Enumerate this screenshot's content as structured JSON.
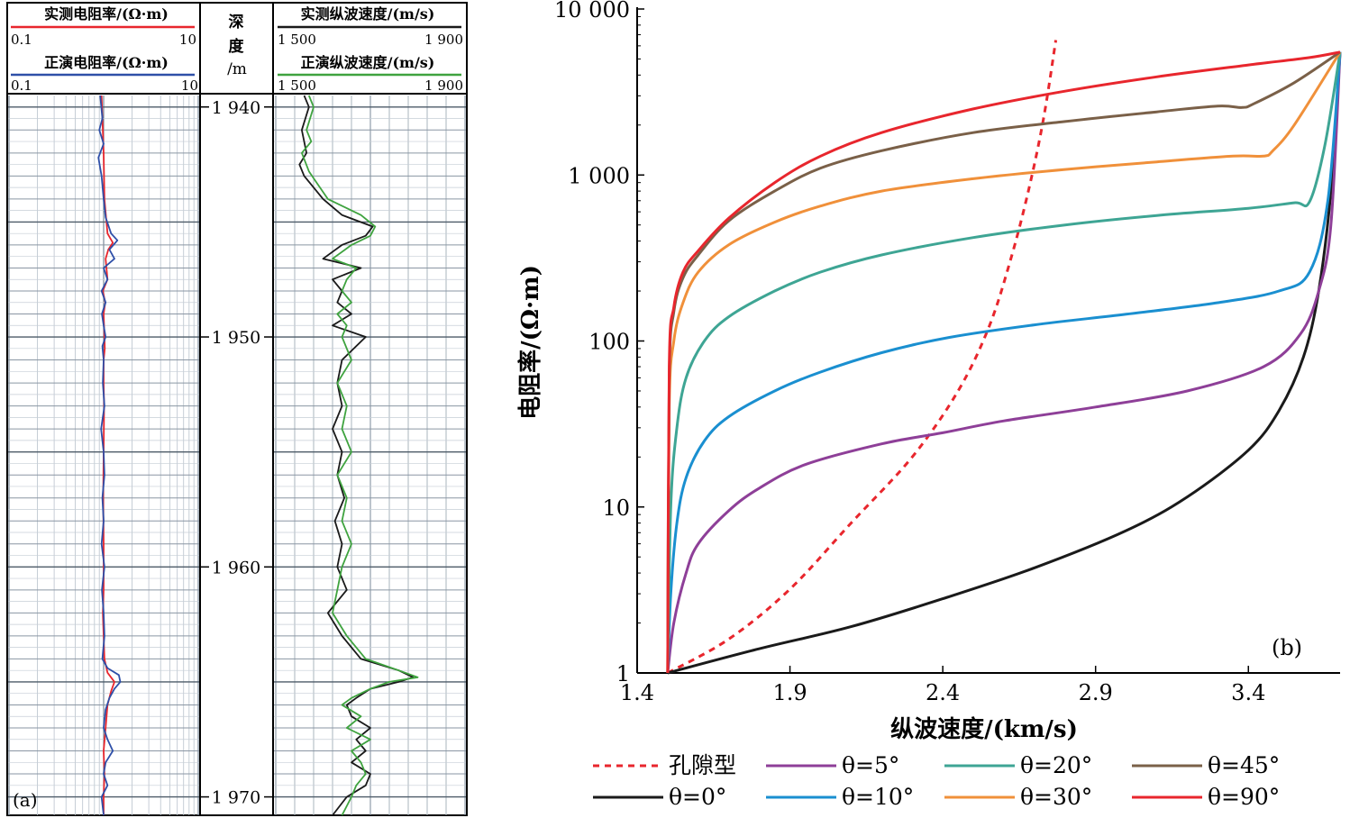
{
  "panel_a": {
    "label": "(a)",
    "resistivity_track": {
      "measured_title": "实测电阻率/(Ω·m)",
      "measured_min": "0.1",
      "measured_max": "10",
      "forward_title": "正演电阻率/(Ω·m)",
      "forward_min": "0.1",
      "forward_max": "10",
      "measured_color": "#e8262d",
      "forward_color": "#2e4fa8"
    },
    "depth_track": {
      "title_line1": "深",
      "title_line2": "度",
      "title_line3": "/m",
      "ticks": [
        "1 940",
        "1 950",
        "1 960",
        "1 970"
      ],
      "tick_values": [
        1940,
        1950,
        1960,
        1970
      ]
    },
    "velocity_track": {
      "measured_title": "实测纵波速度/(m/s)",
      "measured_min": "1 500",
      "measured_max": "1 900",
      "forward_title": "正演纵波速度/(m/s)",
      "forward_min": "1 500",
      "forward_max": "1 900",
      "measured_color": "#1a1a1a",
      "forward_color": "#3fa33f"
    }
  },
  "chart_data": [
    {
      "type": "line",
      "panel": "(a) resistivity log",
      "x_scale": "log",
      "xlim": [
        0.1,
        10
      ],
      "ylim": [
        1939.5,
        1970.8
      ],
      "series": [
        {
          "name": "实测电阻率/(Ω·m)",
          "color": "#e8262d",
          "depth": [
            1939.5,
            1942,
            1944,
            1945.5,
            1945.9,
            1946.2,
            1946.6,
            1947.5,
            1948,
            1948.5,
            1949,
            1950,
            1950.5,
            1951,
            1952,
            1953,
            1955,
            1957,
            1959,
            1961,
            1962,
            1963,
            1964,
            1964.6,
            1965,
            1965.4,
            1966,
            1967,
            1968,
            1969,
            1970,
            1970.8
          ],
          "value": [
            0.95,
            1.0,
            1.02,
            1.1,
            1.25,
            1.12,
            1.05,
            1.1,
            0.98,
            1.04,
            1.0,
            1.02,
            1.03,
            1.0,
            1.0,
            1.01,
            1.0,
            0.99,
            1.0,
            1.0,
            0.98,
            1.0,
            1.02,
            1.1,
            1.3,
            1.2,
            1.1,
            1.05,
            1.0,
            1.02,
            1.0,
            1.0
          ]
        },
        {
          "name": "正演电阻率/(Ω·m)",
          "color": "#2e4fa8",
          "depth": [
            1939.5,
            1940.5,
            1941,
            1941.6,
            1942.2,
            1943,
            1944,
            1944.8,
            1945.5,
            1945.8,
            1946.2,
            1946.6,
            1947,
            1947.5,
            1948,
            1948.5,
            1949,
            1949.5,
            1950,
            1950.4,
            1951,
            1952,
            1953,
            1954,
            1955,
            1956,
            1957,
            1958,
            1959,
            1960,
            1961,
            1962,
            1963,
            1964,
            1964.4,
            1964.7,
            1965,
            1965.3,
            1965.7,
            1966.2,
            1967,
            1967.5,
            1968,
            1968.5,
            1969,
            1969.5,
            1970,
            1970.8
          ],
          "value": [
            0.92,
            0.97,
            0.9,
            1.0,
            0.88,
            0.95,
            1.0,
            1.05,
            1.2,
            1.4,
            1.15,
            1.3,
            1.0,
            1.1,
            0.95,
            1.05,
            0.96,
            1.0,
            1.05,
            0.97,
            1.0,
            0.98,
            1.02,
            0.94,
            1.0,
            1.02,
            0.97,
            1.0,
            0.95,
            1.02,
            0.96,
            1.0,
            1.02,
            0.97,
            1.1,
            1.45,
            1.5,
            1.3,
            1.15,
            1.05,
            1.0,
            1.1,
            1.25,
            1.05,
            1.0,
            1.1,
            0.95,
            1.0
          ]
        }
      ]
    },
    {
      "type": "line",
      "panel": "(a) P-wave velocity log",
      "xlim": [
        1500,
        1900
      ],
      "ylim": [
        1939.5,
        1970.8
      ],
      "series": [
        {
          "name": "实测纵波速度/(m/s)",
          "color": "#1a1a1a",
          "depth": [
            1939.5,
            1940,
            1941,
            1942,
            1942.5,
            1943,
            1944,
            1944.7,
            1945.2,
            1945.6,
            1946,
            1946.6,
            1947,
            1947.5,
            1948,
            1948.5,
            1949,
            1949.5,
            1950,
            1951,
            1952,
            1953,
            1954,
            1955,
            1956,
            1957,
            1958,
            1959,
            1960,
            1961,
            1962,
            1963,
            1964,
            1964.5,
            1964.8,
            1965,
            1965.3,
            1965.7,
            1966,
            1966.5,
            1967,
            1967.5,
            1968,
            1968.5,
            1969,
            1969.5,
            1970,
            1970.8
          ],
          "value": [
            1560,
            1570,
            1555,
            1565,
            1550,
            1560,
            1600,
            1640,
            1705,
            1690,
            1640,
            1600,
            1680,
            1620,
            1640,
            1630,
            1660,
            1620,
            1690,
            1640,
            1630,
            1640,
            1620,
            1640,
            1630,
            1645,
            1625,
            1640,
            1630,
            1650,
            1610,
            1640,
            1680,
            1760,
            1790,
            1760,
            1700,
            1670,
            1650,
            1660,
            1700,
            1670,
            1690,
            1660,
            1700,
            1690,
            1650,
            1620
          ]
        },
        {
          "name": "正演纵波速度/(m/s)",
          "color": "#3fa33f",
          "depth": [
            1939.5,
            1940,
            1941,
            1941.5,
            1942,
            1942.8,
            1943.4,
            1944,
            1944.7,
            1945.2,
            1945.6,
            1946,
            1946.6,
            1947,
            1947.5,
            1948,
            1948.5,
            1949,
            1949.5,
            1950,
            1951,
            1952,
            1953,
            1954,
            1955,
            1956,
            1957,
            1958,
            1959,
            1960,
            1961,
            1962,
            1963,
            1964,
            1964.5,
            1964.8,
            1965,
            1965.3,
            1965.7,
            1966,
            1966.5,
            1967,
            1967.5,
            1968,
            1968.5,
            1969,
            1969.5,
            1970,
            1970.8
          ],
          "value": [
            1570,
            1580,
            1565,
            1575,
            1555,
            1570,
            1590,
            1610,
            1680,
            1710,
            1700,
            1660,
            1620,
            1670,
            1650,
            1640,
            1660,
            1630,
            1650,
            1640,
            1660,
            1630,
            1650,
            1640,
            1660,
            1630,
            1650,
            1640,
            1660,
            1640,
            1630,
            1620,
            1650,
            1690,
            1760,
            1800,
            1740,
            1700,
            1660,
            1640,
            1680,
            1650,
            1700,
            1660,
            1680,
            1690,
            1670,
            1660,
            1640
          ]
        }
      ]
    },
    {
      "type": "line",
      "panel": "(b)",
      "label": "(b)",
      "xlabel": "纵波速度/(km/s)",
      "ylabel": "电阻率/(Ω·m)",
      "xlim": [
        1.4,
        3.7
      ],
      "ylim": [
        1,
        10000
      ],
      "y_scale": "log",
      "x_ticks": [
        "1.4",
        "1.9",
        "2.4",
        "2.9",
        "3.4"
      ],
      "x_tick_values": [
        1.4,
        1.9,
        2.4,
        2.9,
        3.4
      ],
      "y_ticks": [
        "1",
        "10",
        "100",
        "1 000",
        "10 000"
      ],
      "y_tick_values": [
        1,
        10,
        100,
        1000,
        10000
      ],
      "legend_placement": "bottom",
      "series": [
        {
          "name": "孔隙型",
          "color": "#e8262d",
          "dash": true,
          "x": [
            1.5,
            1.7,
            1.9,
            2.1,
            2.3,
            2.45,
            2.55,
            2.62,
            2.68,
            2.73,
            2.77
          ],
          "y": [
            1,
            1.6,
            3.2,
            8,
            20,
            50,
            120,
            300,
            800,
            2200,
            6500
          ]
        },
        {
          "name": "θ=0°",
          "color": "#1a1a1a",
          "x": [
            1.5,
            1.8,
            2.1,
            2.4,
            2.7,
            3.0,
            3.2,
            3.4,
            3.5,
            3.58,
            3.63,
            3.67,
            3.7
          ],
          "y": [
            1,
            1.4,
            1.9,
            2.8,
            4.3,
            7.2,
            11.5,
            22,
            38,
            80,
            200,
            800,
            5500
          ]
        },
        {
          "name": "θ=5°",
          "color": "#8e3f98",
          "x": [
            1.5,
            1.52,
            1.56,
            1.6,
            1.7,
            1.8,
            1.95,
            2.2,
            2.4,
            2.6,
            2.9,
            3.2,
            3.45,
            3.57,
            3.63,
            3.67,
            3.7
          ],
          "y": [
            1,
            2,
            4,
            6,
            9.5,
            13,
            18,
            24,
            28,
            33,
            40,
            50,
            70,
            110,
            200,
            500,
            5500
          ]
        },
        {
          "name": "θ=10°",
          "color": "#1a8fd0",
          "x": [
            1.5,
            1.51,
            1.53,
            1.56,
            1.62,
            1.7,
            1.85,
            2.0,
            2.2,
            2.42,
            2.7,
            3.0,
            3.3,
            3.5,
            3.6,
            3.66,
            3.7
          ],
          "y": [
            1,
            3,
            8,
            15,
            25,
            35,
            50,
            65,
            85,
            105,
            125,
            145,
            170,
            200,
            260,
            700,
            5500
          ]
        },
        {
          "name": "θ=20°",
          "color": "#3ea594",
          "x": [
            1.5,
            1.51,
            1.53,
            1.56,
            1.62,
            1.7,
            1.85,
            2.0,
            2.2,
            2.5,
            2.8,
            3.1,
            3.4,
            3.55,
            3.6,
            3.65,
            3.7
          ],
          "y": [
            1,
            10,
            30,
            60,
            100,
            140,
            200,
            260,
            330,
            420,
            500,
            570,
            630,
            680,
            690,
            1500,
            5500
          ]
        },
        {
          "name": "θ=30°",
          "color": "#f0903a",
          "x": [
            1.5,
            1.505,
            1.52,
            1.55,
            1.6,
            1.7,
            1.85,
            2.0,
            2.2,
            2.5,
            2.8,
            3.1,
            3.35,
            3.45,
            3.48,
            3.55,
            3.7
          ],
          "y": [
            1,
            40,
            100,
            170,
            260,
            380,
            520,
            650,
            800,
            950,
            1080,
            1200,
            1300,
            1300,
            1400,
            2000,
            5500
          ]
        },
        {
          "name": "θ=45°",
          "color": "#7a6048",
          "x": [
            1.5,
            1.505,
            1.52,
            1.55,
            1.6,
            1.7,
            1.85,
            2.0,
            2.2,
            2.5,
            2.8,
            3.1,
            3.3,
            3.38,
            3.42,
            3.55,
            3.7
          ],
          "y": [
            1,
            60,
            150,
            240,
            330,
            530,
            800,
            1100,
            1400,
            1800,
            2100,
            2400,
            2600,
            2550,
            2700,
            3600,
            5500
          ]
        },
        {
          "name": "θ=90°",
          "color": "#e8262d",
          "x": [
            1.5,
            1.505,
            1.52,
            1.55,
            1.6,
            1.7,
            1.85,
            2.0,
            2.2,
            2.5,
            2.8,
            3.1,
            3.4,
            3.6,
            3.7
          ],
          "y": [
            1,
            70,
            160,
            260,
            350,
            550,
            900,
            1300,
            1800,
            2500,
            3200,
            3900,
            4600,
            5100,
            5500
          ]
        }
      ]
    }
  ]
}
